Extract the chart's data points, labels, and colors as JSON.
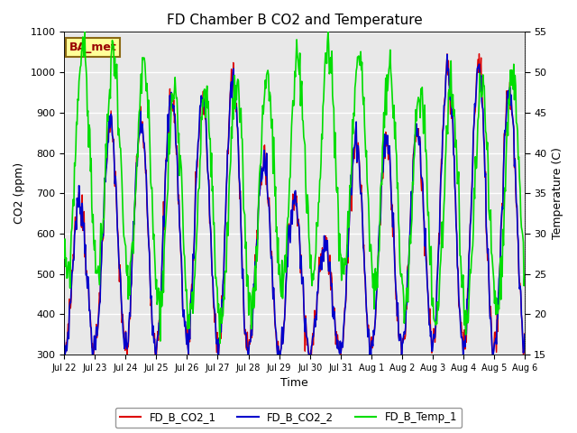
{
  "title": "FD Chamber B CO2 and Temperature",
  "xlabel": "Time",
  "ylabel_left": "CO2 (ppm)",
  "ylabel_right": "Temperature (C)",
  "ylim_left": [
    300,
    1100
  ],
  "ylim_right": [
    15,
    55
  ],
  "annotation_text": "BA_met",
  "legend": [
    "FD_B_CO2_1",
    "FD_B_CO2_2",
    "FD_B_Temp_1"
  ],
  "colors": [
    "#dd0000",
    "#0000cc",
    "#00dd00"
  ],
  "fig_bg_color": "#ffffff",
  "plot_bg_color": "#e8e8e8",
  "xtick_labels": [
    "Jul 22",
    "Jul 23",
    "Jul 24",
    "Jul 25",
    "Jul 26",
    "Jul 27",
    "Jul 28",
    "Jul 29",
    "Jul 30",
    "Jul 31",
    "Aug 1",
    "Aug 2",
    "Aug 3",
    "Aug 4",
    "Aug 5",
    "Aug 6"
  ],
  "figsize": [
    6.4,
    4.8
  ],
  "dpi": 100
}
